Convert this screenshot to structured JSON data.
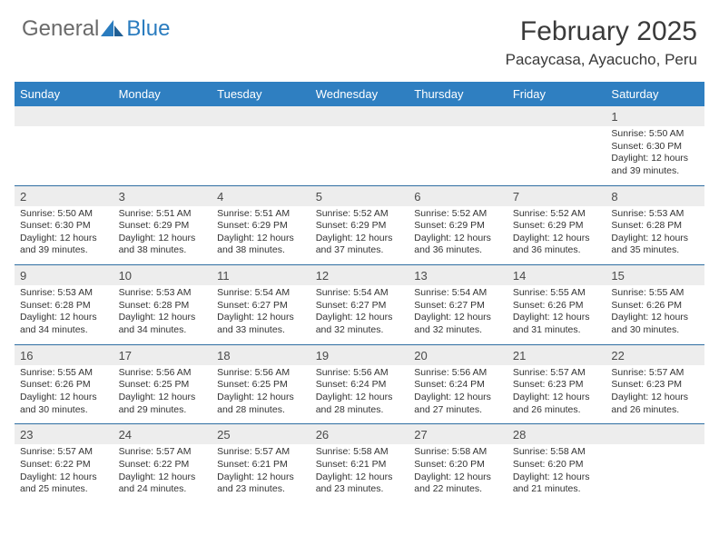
{
  "brand": {
    "general": "General",
    "blue": "Blue"
  },
  "title": "February 2025",
  "location": "Pacaycasa, Ayacucho, Peru",
  "colors": {
    "header_bg": "#2f7fc1",
    "header_text": "#ffffff",
    "daynum_bg": "#ededed",
    "week_border": "#2f6ea2",
    "text": "#333333",
    "brand_gray": "#6a6a6a",
    "brand_blue": "#2a7cbf",
    "page_bg": "#ffffff"
  },
  "dow": [
    "Sunday",
    "Monday",
    "Tuesday",
    "Wednesday",
    "Thursday",
    "Friday",
    "Saturday"
  ],
  "weeks": [
    [
      {
        "n": "",
        "lines": []
      },
      {
        "n": "",
        "lines": []
      },
      {
        "n": "",
        "lines": []
      },
      {
        "n": "",
        "lines": []
      },
      {
        "n": "",
        "lines": []
      },
      {
        "n": "",
        "lines": []
      },
      {
        "n": "1",
        "lines": [
          "Sunrise: 5:50 AM",
          "Sunset: 6:30 PM",
          "Daylight: 12 hours and 39 minutes."
        ]
      }
    ],
    [
      {
        "n": "2",
        "lines": [
          "Sunrise: 5:50 AM",
          "Sunset: 6:30 PM",
          "Daylight: 12 hours and 39 minutes."
        ]
      },
      {
        "n": "3",
        "lines": [
          "Sunrise: 5:51 AM",
          "Sunset: 6:29 PM",
          "Daylight: 12 hours and 38 minutes."
        ]
      },
      {
        "n": "4",
        "lines": [
          "Sunrise: 5:51 AM",
          "Sunset: 6:29 PM",
          "Daylight: 12 hours and 38 minutes."
        ]
      },
      {
        "n": "5",
        "lines": [
          "Sunrise: 5:52 AM",
          "Sunset: 6:29 PM",
          "Daylight: 12 hours and 37 minutes."
        ]
      },
      {
        "n": "6",
        "lines": [
          "Sunrise: 5:52 AM",
          "Sunset: 6:29 PM",
          "Daylight: 12 hours and 36 minutes."
        ]
      },
      {
        "n": "7",
        "lines": [
          "Sunrise: 5:52 AM",
          "Sunset: 6:29 PM",
          "Daylight: 12 hours and 36 minutes."
        ]
      },
      {
        "n": "8",
        "lines": [
          "Sunrise: 5:53 AM",
          "Sunset: 6:28 PM",
          "Daylight: 12 hours and 35 minutes."
        ]
      }
    ],
    [
      {
        "n": "9",
        "lines": [
          "Sunrise: 5:53 AM",
          "Sunset: 6:28 PM",
          "Daylight: 12 hours and 34 minutes."
        ]
      },
      {
        "n": "10",
        "lines": [
          "Sunrise: 5:53 AM",
          "Sunset: 6:28 PM",
          "Daylight: 12 hours and 34 minutes."
        ]
      },
      {
        "n": "11",
        "lines": [
          "Sunrise: 5:54 AM",
          "Sunset: 6:27 PM",
          "Daylight: 12 hours and 33 minutes."
        ]
      },
      {
        "n": "12",
        "lines": [
          "Sunrise: 5:54 AM",
          "Sunset: 6:27 PM",
          "Daylight: 12 hours and 32 minutes."
        ]
      },
      {
        "n": "13",
        "lines": [
          "Sunrise: 5:54 AM",
          "Sunset: 6:27 PM",
          "Daylight: 12 hours and 32 minutes."
        ]
      },
      {
        "n": "14",
        "lines": [
          "Sunrise: 5:55 AM",
          "Sunset: 6:26 PM",
          "Daylight: 12 hours and 31 minutes."
        ]
      },
      {
        "n": "15",
        "lines": [
          "Sunrise: 5:55 AM",
          "Sunset: 6:26 PM",
          "Daylight: 12 hours and 30 minutes."
        ]
      }
    ],
    [
      {
        "n": "16",
        "lines": [
          "Sunrise: 5:55 AM",
          "Sunset: 6:26 PM",
          "Daylight: 12 hours and 30 minutes."
        ]
      },
      {
        "n": "17",
        "lines": [
          "Sunrise: 5:56 AM",
          "Sunset: 6:25 PM",
          "Daylight: 12 hours and 29 minutes."
        ]
      },
      {
        "n": "18",
        "lines": [
          "Sunrise: 5:56 AM",
          "Sunset: 6:25 PM",
          "Daylight: 12 hours and 28 minutes."
        ]
      },
      {
        "n": "19",
        "lines": [
          "Sunrise: 5:56 AM",
          "Sunset: 6:24 PM",
          "Daylight: 12 hours and 28 minutes."
        ]
      },
      {
        "n": "20",
        "lines": [
          "Sunrise: 5:56 AM",
          "Sunset: 6:24 PM",
          "Daylight: 12 hours and 27 minutes."
        ]
      },
      {
        "n": "21",
        "lines": [
          "Sunrise: 5:57 AM",
          "Sunset: 6:23 PM",
          "Daylight: 12 hours and 26 minutes."
        ]
      },
      {
        "n": "22",
        "lines": [
          "Sunrise: 5:57 AM",
          "Sunset: 6:23 PM",
          "Daylight: 12 hours and 26 minutes."
        ]
      }
    ],
    [
      {
        "n": "23",
        "lines": [
          "Sunrise: 5:57 AM",
          "Sunset: 6:22 PM",
          "Daylight: 12 hours and 25 minutes."
        ]
      },
      {
        "n": "24",
        "lines": [
          "Sunrise: 5:57 AM",
          "Sunset: 6:22 PM",
          "Daylight: 12 hours and 24 minutes."
        ]
      },
      {
        "n": "25",
        "lines": [
          "Sunrise: 5:57 AM",
          "Sunset: 6:21 PM",
          "Daylight: 12 hours and 23 minutes."
        ]
      },
      {
        "n": "26",
        "lines": [
          "Sunrise: 5:58 AM",
          "Sunset: 6:21 PM",
          "Daylight: 12 hours and 23 minutes."
        ]
      },
      {
        "n": "27",
        "lines": [
          "Sunrise: 5:58 AM",
          "Sunset: 6:20 PM",
          "Daylight: 12 hours and 22 minutes."
        ]
      },
      {
        "n": "28",
        "lines": [
          "Sunrise: 5:58 AM",
          "Sunset: 6:20 PM",
          "Daylight: 12 hours and 21 minutes."
        ]
      },
      {
        "n": "",
        "lines": []
      }
    ]
  ]
}
